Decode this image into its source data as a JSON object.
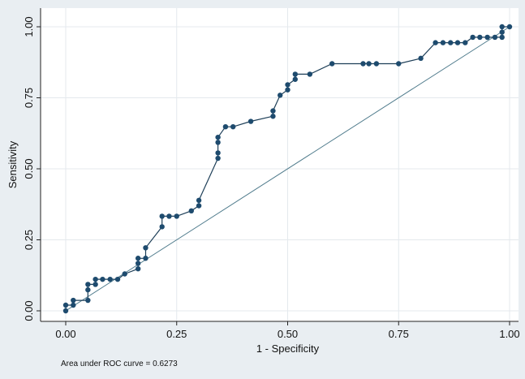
{
  "chart_data": {
    "type": "line",
    "xlabel": "1 - Specificity",
    "ylabel": "Sensitivity",
    "xlim": [
      0,
      1
    ],
    "ylim": [
      0,
      1
    ],
    "xticks": [
      "0.00",
      "0.25",
      "0.50",
      "0.75",
      "1.00"
    ],
    "yticks": [
      "0.00",
      "0.25",
      "0.50",
      "0.75",
      "1.00"
    ],
    "grid": true,
    "annotation": "Area under ROC curve = 0.6273",
    "colors": {
      "outer_background": "#e9eef2",
      "plot_background": "#ffffff",
      "grid": "#e4e9ed",
      "curve": "#1e3f58",
      "marker": "#1e4b6e",
      "reference_line": "#4f7b8c"
    },
    "series": [
      {
        "values": [
          [
            0.0,
            0.0
          ],
          [
            0.0,
            0.02
          ],
          [
            0.017,
            0.02
          ],
          [
            0.017,
            0.037
          ],
          [
            0.05,
            0.037
          ],
          [
            0.05,
            0.074
          ],
          [
            0.05,
            0.093
          ],
          [
            0.067,
            0.093
          ],
          [
            0.067,
            0.111
          ],
          [
            0.083,
            0.111
          ],
          [
            0.1,
            0.111
          ],
          [
            0.117,
            0.111
          ],
          [
            0.133,
            0.13
          ],
          [
            0.163,
            0.148
          ],
          [
            0.163,
            0.167
          ],
          [
            0.163,
            0.185
          ],
          [
            0.18,
            0.185
          ],
          [
            0.18,
            0.222
          ],
          [
            0.217,
            0.296
          ],
          [
            0.217,
            0.333
          ],
          [
            0.233,
            0.333
          ],
          [
            0.25,
            0.333
          ],
          [
            0.283,
            0.352
          ],
          [
            0.3,
            0.37
          ],
          [
            0.3,
            0.389
          ],
          [
            0.343,
            0.537
          ],
          [
            0.343,
            0.556
          ],
          [
            0.343,
            0.593
          ],
          [
            0.343,
            0.611
          ],
          [
            0.36,
            0.648
          ],
          [
            0.377,
            0.648
          ],
          [
            0.417,
            0.667
          ],
          [
            0.467,
            0.685
          ],
          [
            0.467,
            0.704
          ],
          [
            0.483,
            0.759
          ],
          [
            0.5,
            0.778
          ],
          [
            0.5,
            0.796
          ],
          [
            0.517,
            0.815
          ],
          [
            0.517,
            0.833
          ],
          [
            0.55,
            0.833
          ],
          [
            0.6,
            0.87
          ],
          [
            0.67,
            0.87
          ],
          [
            0.683,
            0.87
          ],
          [
            0.7,
            0.87
          ],
          [
            0.75,
            0.87
          ],
          [
            0.8,
            0.889
          ],
          [
            0.833,
            0.944
          ],
          [
            0.85,
            0.944
          ],
          [
            0.867,
            0.944
          ],
          [
            0.883,
            0.944
          ],
          [
            0.9,
            0.944
          ],
          [
            0.917,
            0.963
          ],
          [
            0.933,
            0.963
          ],
          [
            0.95,
            0.963
          ],
          [
            0.967,
            0.963
          ],
          [
            0.983,
            0.963
          ],
          [
            0.983,
            0.981
          ],
          [
            0.983,
            1.0
          ],
          [
            1.0,
            1.0
          ]
        ]
      },
      {
        "type": "reference-line",
        "values": [
          [
            0,
            0
          ],
          [
            1,
            1
          ]
        ]
      }
    ]
  }
}
